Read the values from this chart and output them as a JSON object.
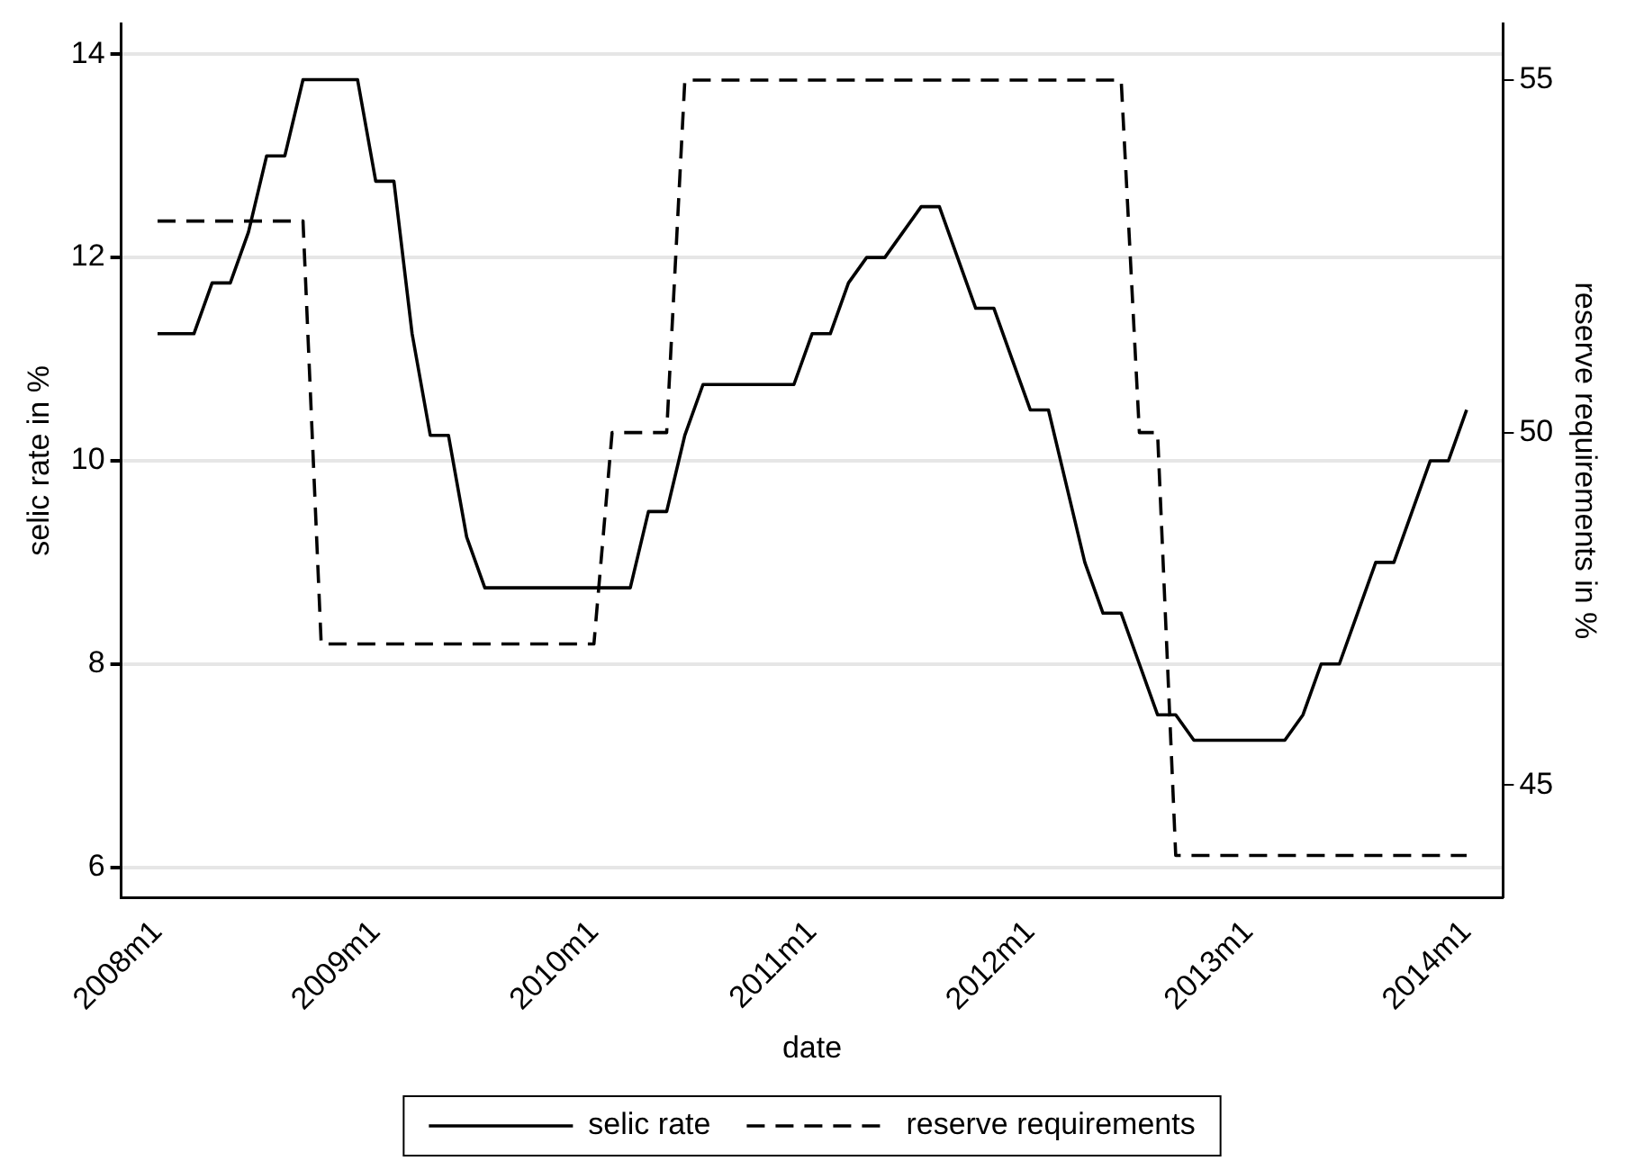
{
  "chart_data": {
    "type": "line",
    "xlabel": "date",
    "ylabel": "selic rate in %",
    "y2label": "reserve requirements in %",
    "x": [
      "2008-01",
      "2008-02",
      "2008-03",
      "2008-04",
      "2008-05",
      "2008-06",
      "2008-07",
      "2008-08",
      "2008-09",
      "2008-10",
      "2008-11",
      "2008-12",
      "2009-01",
      "2009-02",
      "2009-03",
      "2009-04",
      "2009-05",
      "2009-06",
      "2009-07",
      "2009-08",
      "2009-09",
      "2009-10",
      "2009-11",
      "2009-12",
      "2010-01",
      "2010-02",
      "2010-03",
      "2010-04",
      "2010-05",
      "2010-06",
      "2010-07",
      "2010-08",
      "2010-09",
      "2010-10",
      "2010-11",
      "2010-12",
      "2011-01",
      "2011-02",
      "2011-03",
      "2011-04",
      "2011-05",
      "2011-06",
      "2011-07",
      "2011-08",
      "2011-09",
      "2011-10",
      "2011-11",
      "2011-12",
      "2012-01",
      "2012-02",
      "2012-03",
      "2012-04",
      "2012-05",
      "2012-06",
      "2012-07",
      "2012-08",
      "2012-09",
      "2012-10",
      "2012-11",
      "2012-12",
      "2013-01",
      "2013-02",
      "2013-03",
      "2013-04",
      "2013-05",
      "2013-06",
      "2013-07",
      "2013-08",
      "2013-09",
      "2013-10",
      "2013-11",
      "2013-12",
      "2014-01"
    ],
    "series": [
      {
        "name": "selic rate",
        "color": "#000000",
        "line_style": "solid",
        "values": [
          11.25,
          11.25,
          11.25,
          11.75,
          11.75,
          12.25,
          13,
          13,
          13.75,
          13.75,
          13.75,
          13.75,
          12.75,
          12.75,
          11.25,
          10.25,
          10.25,
          9.25,
          8.75,
          8.75,
          8.75,
          8.75,
          8.75,
          8.75,
          8.75,
          8.75,
          8.75,
          9.5,
          9.5,
          10.25,
          10.75,
          10.75,
          10.75,
          10.75,
          10.75,
          10.75,
          11.25,
          11.25,
          11.75,
          12,
          12,
          12.25,
          12.5,
          12.5,
          12,
          11.5,
          11.5,
          11,
          10.5,
          10.5,
          9.75,
          9,
          8.5,
          8.5,
          8,
          7.5,
          7.5,
          7.25,
          7.25,
          7.25,
          7.25,
          7.25,
          7.25,
          7.5,
          8,
          8,
          8.5,
          9,
          9,
          9.5,
          10,
          10,
          10.5
        ]
      },
      {
        "name": "reserve requirements",
        "color": "#000000",
        "line_style": "dashed",
        "axis": "y2",
        "values": [
          53,
          53,
          53,
          53,
          53,
          53,
          53,
          53,
          53,
          47,
          47,
          47,
          47,
          47,
          47,
          47,
          47,
          47,
          47,
          47,
          47,
          47,
          47,
          47,
          47,
          50,
          50,
          50,
          50,
          55,
          55,
          55,
          55,
          55,
          55,
          55,
          55,
          55,
          55,
          55,
          55,
          55,
          55,
          55,
          55,
          55,
          55,
          55,
          55,
          55,
          55,
          55,
          55,
          55,
          50,
          50,
          44,
          44,
          44,
          44,
          44,
          44,
          44,
          44,
          44,
          44,
          44,
          44,
          44,
          44,
          44,
          44,
          44
        ]
      }
    ],
    "ylim": [
      5.7,
      14.3
    ],
    "yticks": [
      6,
      8,
      10,
      12,
      14
    ],
    "y2lim": [
      43.4,
      55.8
    ],
    "y2ticks": [
      45,
      50,
      55
    ],
    "xlim": [
      "2007-11",
      "2014-03"
    ],
    "xticks": [
      {
        "value": "2008-01",
        "label": "2008m1"
      },
      {
        "value": "2009-01",
        "label": "2009m1"
      },
      {
        "value": "2010-01",
        "label": "2010m1"
      },
      {
        "value": "2011-01",
        "label": "2011m1"
      },
      {
        "value": "2012-01",
        "label": "2012m1"
      },
      {
        "value": "2013-01",
        "label": "2013m1"
      },
      {
        "value": "2014-01",
        "label": "2014m1"
      }
    ],
    "grid": "y",
    "legend": "bottom",
    "marker": "none"
  }
}
